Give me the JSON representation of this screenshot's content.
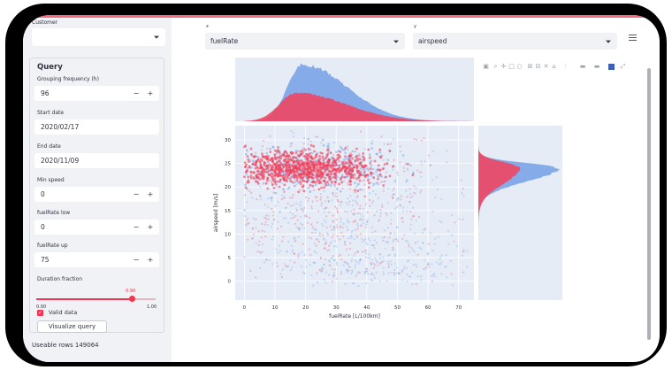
{
  "sidebar": {
    "customer_label": "Customer",
    "customer_value": "",
    "query_title": "Query",
    "grouping_label": "Grouping frequency (h)",
    "grouping_value": "96",
    "start_label": "Start date",
    "start_value": "2020/02/17",
    "end_label": "End date",
    "end_value": "2020/11/09",
    "minspeed_label": "Min speed",
    "minspeed_value": "0",
    "fuellow_label": "fuelRate low",
    "fuellow_value": "0",
    "fuelup_label": "fuelRate up",
    "fuelup_value": "75",
    "minus": "−",
    "plus": "+",
    "duration_label": "Duration fraction",
    "duration_value": "0.90",
    "duration_min": "0.00",
    "duration_max": "1.00",
    "valid_label": "Valid data",
    "visualize_label": "Visualize query",
    "useable_rows": "Useable rows 149064"
  },
  "main": {
    "x_label": "x",
    "x_value": "fuelRate",
    "y_label": "y",
    "y_value": "airspeed"
  },
  "colors": {
    "accent": "#f3354f",
    "series_blue": "#7fa8e8",
    "series_red": "#f4405a",
    "sidebar_bg": "#f0f2f6",
    "plot_bg": "#e5ecf6"
  },
  "icons": [
    "camera-icon",
    "zoom-icon",
    "pan-icon",
    "box-select-icon",
    "lasso-icon",
    "zoom-in-icon",
    "zoom-out-icon",
    "autoscale-icon",
    "reset-axes-icon",
    "spike-lines-icon",
    "hover-closest-icon",
    "hover-compare-icon",
    "plotly-logo-icon",
    "fullscreen-icon"
  ],
  "chart_data": {
    "type": "scatter",
    "xlabel": "fuelRate [L/100km]",
    "ylabel": "airspeed [m/s]",
    "xlim": [
      -3,
      75
    ],
    "ylim": [
      -4,
      33
    ],
    "x_ticks": [
      "0",
      "10",
      "20",
      "30",
      "40",
      "50",
      "60",
      "70"
    ],
    "y_ticks": [
      "0",
      "5",
      "10",
      "15",
      "20",
      "25",
      "30"
    ],
    "x_tick_values": [
      0,
      10,
      20,
      30,
      40,
      50,
      60,
      70
    ],
    "y_tick_values": [
      0,
      5,
      10,
      15,
      20,
      25,
      30
    ],
    "series": [
      {
        "color": "#7fa8e8",
        "dense_core": {
          "x": [
            0,
            42
          ],
          "y": [
            21,
            28
          ]
        },
        "spread": {
          "x": [
            0,
            74
          ],
          "y": [
            -1,
            32
          ]
        }
      },
      {
        "color": "#f4405a",
        "dense_core": {
          "x": [
            0,
            40
          ],
          "y": [
            21,
            27
          ]
        },
        "spread": {
          "x": [
            0,
            74
          ],
          "y": [
            0,
            31
          ]
        }
      }
    ],
    "marginal_x_histogram": {
      "blue_peak_x": 19,
      "red_peak_x": 17
    },
    "marginal_y_histogram": {
      "blue_peak_y": 24,
      "red_peak_y": 24
    }
  }
}
